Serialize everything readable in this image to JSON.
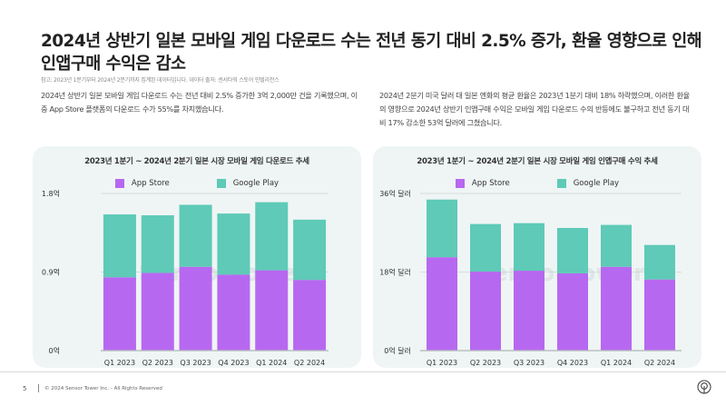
{
  "header": {
    "title": "2024년 상반기 일본 모바일 게임 다운로드 수는 전년 동기 대비 2.5% 증가, 환율 영향으로 인해 인앱구매 수익은 감소",
    "note": "참고: 2023년 1분기부터 2024년 2분기까지 집계된 데이터입니다. 데이터 출처: 센서타워 스토어 인텔리전스"
  },
  "paragraphs": {
    "left": "2024년 상반기 일본 모바일 게임 다운로드 수는 전년 대비 2.5% 증가한 3억 2,000만 건을 기록했으며, 이 중 App Store 플랫폼의 다운로드 수가 55%를 차지했습니다.",
    "right": "2024년 2분기 미국 달러 대 일본 엔화의 평균 환율은 2023년 1분기 대비 18% 하락했으며, 이러한 환율의 영향으로 2024년 상반기 인앱구매 수익은 모바일 게임 다운로드 수의 반등에도 불구하고 전년 동기 대비 17% 감소한 53억 달러에 그쳤습니다."
  },
  "colors": {
    "app_store": "#b768f0",
    "google_play": "#5ecab7",
    "panel_bg": "#eff5f5",
    "gridline": "#c8cfcf"
  },
  "chart_data": [
    {
      "type": "bar",
      "stacked": true,
      "title": "2023년 1분기 ~ 2024년 2분기 일본 시장 모바일 게임 다운로드 추세",
      "categories": [
        "Q1 2023",
        "Q2 2023",
        "Q3 2023",
        "Q4 2023",
        "Q1 2024",
        "Q2 2024"
      ],
      "series": [
        {
          "name": "App Store",
          "color": "#b768f0",
          "values": [
            0.84,
            0.89,
            0.96,
            0.87,
            0.92,
            0.81
          ]
        },
        {
          "name": "Google Play",
          "color": "#5ecab7",
          "values": [
            0.72,
            0.66,
            0.71,
            0.7,
            0.78,
            0.69
          ]
        }
      ],
      "yticks": [
        0,
        0.9,
        1.8
      ],
      "ytick_labels": [
        "0억",
        "0.9억",
        "1.8억"
      ],
      "ylim": [
        0,
        1.8
      ],
      "grid": true,
      "legend": "top-center",
      "xlabel": "",
      "ylabel": ""
    },
    {
      "type": "bar",
      "stacked": true,
      "title": "2023년 1분기 ~ 2024년 2분기 일본 시장 모바일 게임 인앱구매 수익 추세",
      "categories": [
        "Q1 2023",
        "Q2 2023",
        "Q3 2023",
        "Q4 2023",
        "Q1 2024",
        "Q2 2024"
      ],
      "series": [
        {
          "name": "App Store",
          "color": "#b768f0",
          "values": [
            21.4,
            18.1,
            18.3,
            17.7,
            19.2,
            16.3
          ]
        },
        {
          "name": "Google Play",
          "color": "#5ecab7",
          "values": [
            13.2,
            10.9,
            10.9,
            10.4,
            9.6,
            7.9
          ]
        }
      ],
      "yticks": [
        0,
        18,
        36
      ],
      "ytick_labels": [
        "0억 달러",
        "18억 달러",
        "36억 달러"
      ],
      "ylim": [
        0,
        36
      ],
      "grid": true,
      "legend": "top-center",
      "xlabel": "",
      "ylabel": ""
    }
  ],
  "watermark": "SensorTower",
  "footer": {
    "page_number": "5",
    "copyright": "© 2024 Sensor Tower Inc. - All Rights Reserved"
  }
}
